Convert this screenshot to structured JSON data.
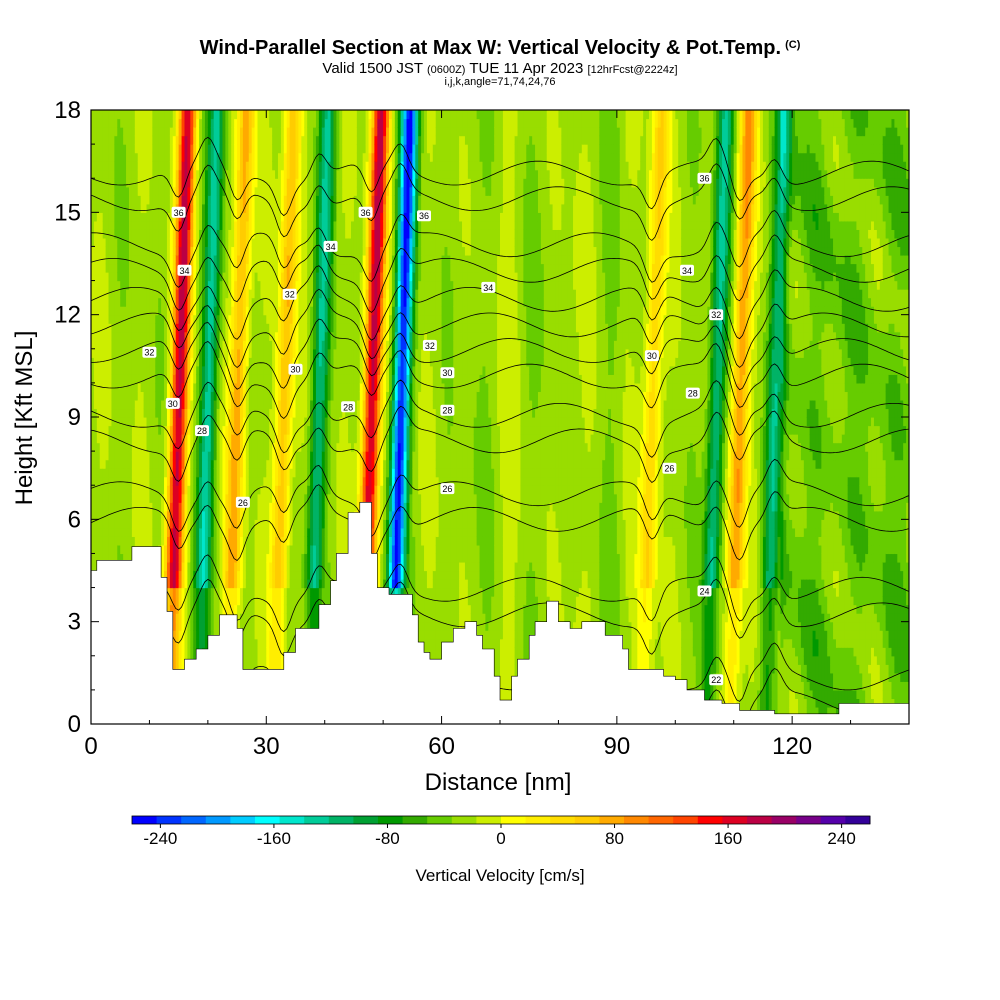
{
  "header": {
    "title": "Wind-Parallel Section at Max W: Vertical Velocity & Pot.Temp.",
    "copyright": "(C)",
    "subtitle_main": "Valid 1500 JST",
    "subtitle_utc": "(0600Z)",
    "subtitle_date": "TUE 11 Apr 2023",
    "subtitle_fcst": "[12hrFcst@2224z]",
    "indices": "i,j,k,angle=71,74,24,76"
  },
  "chart_data": {
    "type": "heatmap",
    "xlabel": "Distance [nm]",
    "ylabel": "Height [Kft MSL]",
    "xlim": [
      0,
      140
    ],
    "ylim": [
      0,
      18
    ],
    "xticks": [
      0,
      30,
      60,
      90,
      120
    ],
    "yticks": [
      0,
      3,
      6,
      9,
      12,
      15,
      18
    ],
    "colorbar": {
      "label": "Vertical Velocity [cm/s]",
      "range": [
        -260,
        260
      ],
      "step": 20,
      "ticks": [
        -240,
        -160,
        -80,
        0,
        80,
        160,
        240
      ],
      "colors": [
        "#0000ff",
        "#0033ff",
        "#0066ff",
        "#0099ff",
        "#00ccff",
        "#00ffff",
        "#00e6cc",
        "#00cc99",
        "#00b366",
        "#00a033",
        "#009900",
        "#33aa00",
        "#66cc00",
        "#99dd00",
        "#ccee00",
        "#ffff00",
        "#ffee00",
        "#ffdd00",
        "#ffcc00",
        "#ffaa00",
        "#ff8800",
        "#ff6600",
        "#ff4400",
        "#ff0000",
        "#dd0022",
        "#bb0044",
        "#990066",
        "#770088",
        "#5500aa",
        "#330099"
      ]
    },
    "updrafts": [
      {
        "x": 15,
        "w": 230
      },
      {
        "x": 25,
        "w": 120
      },
      {
        "x": 33,
        "w": 110
      },
      {
        "x": 48,
        "w": 240
      },
      {
        "x": 96,
        "w": 90
      },
      {
        "x": 111,
        "w": 130
      }
    ],
    "downdrafts": [
      {
        "x": 20,
        "w": -120
      },
      {
        "x": 39,
        "w": -110
      },
      {
        "x": 53,
        "w": -250
      },
      {
        "x": 107,
        "w": -120
      },
      {
        "x": 117,
        "w": -100
      }
    ],
    "isentropes": [
      {
        "theta": 22,
        "base": 0.6
      },
      {
        "theta": 24,
        "base": 3.2
      },
      {
        "theta": 26,
        "base": 6.0
      },
      {
        "theta": 28,
        "base": 8.3
      },
      {
        "theta": 30,
        "base": 10.2
      },
      {
        "theta": 32,
        "base": 11.7
      },
      {
        "theta": 34,
        "base": 13.3
      },
      {
        "theta": 36,
        "base": 15.4
      }
    ],
    "contour_labels": [
      {
        "text": "36",
        "x": 15,
        "y": 15.0
      },
      {
        "text": "34",
        "x": 16,
        "y": 13.3
      },
      {
        "text": "32",
        "x": 10,
        "y": 10.9
      },
      {
        "text": "30",
        "x": 14,
        "y": 9.4
      },
      {
        "text": "28",
        "x": 19,
        "y": 8.6
      },
      {
        "text": "26",
        "x": 26,
        "y": 6.5
      },
      {
        "text": "32",
        "x": 34,
        "y": 12.6
      },
      {
        "text": "30",
        "x": 35,
        "y": 10.4
      },
      {
        "text": "34",
        "x": 41,
        "y": 14.0
      },
      {
        "text": "36",
        "x": 47,
        "y": 15.0
      },
      {
        "text": "28",
        "x": 44,
        "y": 9.3
      },
      {
        "text": "36",
        "x": 57,
        "y": 14.9
      },
      {
        "text": "32",
        "x": 58,
        "y": 11.1
      },
      {
        "text": "30",
        "x": 61,
        "y": 10.3
      },
      {
        "text": "28",
        "x": 61,
        "y": 9.2
      },
      {
        "text": "26",
        "x": 61,
        "y": 6.9
      },
      {
        "text": "34",
        "x": 68,
        "y": 12.8
      },
      {
        "text": "30",
        "x": 96,
        "y": 10.8
      },
      {
        "text": "28",
        "x": 103,
        "y": 9.7
      },
      {
        "text": "26",
        "x": 99,
        "y": 7.5
      },
      {
        "text": "24",
        "x": 105,
        "y": 3.9
      },
      {
        "text": "22",
        "x": 107,
        "y": 1.3
      },
      {
        "text": "36",
        "x": 105,
        "y": 16.0
      },
      {
        "text": "34",
        "x": 102,
        "y": 13.3
      },
      {
        "text": "32",
        "x": 107,
        "y": 12.0
      }
    ],
    "terrain_kft": [
      [
        0,
        4.5
      ],
      [
        1,
        4.5
      ],
      [
        1,
        4.8
      ],
      [
        7,
        4.8
      ],
      [
        7,
        5.2
      ],
      [
        12,
        5.2
      ],
      [
        12,
        4.3
      ],
      [
        13,
        4.3
      ],
      [
        13,
        3.3
      ],
      [
        14,
        3.3
      ],
      [
        14,
        1.6
      ],
      [
        16,
        1.6
      ],
      [
        16,
        1.9
      ],
      [
        18,
        1.9
      ],
      [
        18,
        2.2
      ],
      [
        20,
        2.2
      ],
      [
        20,
        2.6
      ],
      [
        22,
        2.6
      ],
      [
        22,
        3.2
      ],
      [
        25,
        3.2
      ],
      [
        25,
        2.8
      ],
      [
        26,
        2.8
      ],
      [
        26,
        1.6
      ],
      [
        33,
        1.6
      ],
      [
        33,
        2.1
      ],
      [
        35,
        2.1
      ],
      [
        35,
        2.8
      ],
      [
        39,
        2.8
      ],
      [
        39,
        3.5
      ],
      [
        41,
        3.5
      ],
      [
        41,
        4.2
      ],
      [
        42,
        4.2
      ],
      [
        42,
        5.0
      ],
      [
        44,
        5.0
      ],
      [
        44,
        6.2
      ],
      [
        46,
        6.2
      ],
      [
        46,
        6.5
      ],
      [
        48,
        6.5
      ],
      [
        48,
        5.0
      ],
      [
        49,
        5.0
      ],
      [
        49,
        4.0
      ],
      [
        51,
        4.0
      ],
      [
        51,
        3.8
      ],
      [
        52,
        3.8
      ],
      [
        52,
        3.8
      ],
      [
        55,
        3.8
      ],
      [
        55,
        3.2
      ],
      [
        56,
        3.2
      ],
      [
        56,
        2.4
      ],
      [
        57,
        2.4
      ],
      [
        57,
        2.1
      ],
      [
        58,
        2.1
      ],
      [
        58,
        1.9
      ],
      [
        60,
        1.9
      ],
      [
        60,
        2.4
      ],
      [
        62,
        2.4
      ],
      [
        62,
        2.8
      ],
      [
        64,
        2.8
      ],
      [
        64,
        3.0
      ],
      [
        66,
        3.0
      ],
      [
        66,
        2.6
      ],
      [
        67,
        2.6
      ],
      [
        67,
        2.2
      ],
      [
        69,
        2.2
      ],
      [
        69,
        1.4
      ],
      [
        70,
        1.4
      ],
      [
        70,
        0.7
      ],
      [
        72,
        0.7
      ],
      [
        72,
        1.4
      ],
      [
        73,
        1.4
      ],
      [
        73,
        1.9
      ],
      [
        75,
        1.9
      ],
      [
        75,
        2.6
      ],
      [
        76,
        2.6
      ],
      [
        76,
        3.0
      ],
      [
        78,
        3.0
      ],
      [
        78,
        3.6
      ],
      [
        80,
        3.6
      ],
      [
        80,
        3.0
      ],
      [
        82,
        3.0
      ],
      [
        82,
        2.8
      ],
      [
        84,
        2.8
      ],
      [
        84,
        3.0
      ],
      [
        86,
        3.0
      ],
      [
        86,
        3.0
      ],
      [
        88,
        3.0
      ],
      [
        88,
        2.6
      ],
      [
        91,
        2.6
      ],
      [
        91,
        2.2
      ],
      [
        92,
        2.2
      ],
      [
        92,
        1.6
      ],
      [
        98,
        1.6
      ],
      [
        98,
        1.4
      ],
      [
        100,
        1.4
      ],
      [
        100,
        1.3
      ],
      [
        102,
        1.3
      ],
      [
        102,
        1.0
      ],
      [
        105,
        1.0
      ],
      [
        105,
        0.7
      ],
      [
        108,
        0.7
      ],
      [
        108,
        0.6
      ],
      [
        111,
        0.6
      ],
      [
        111,
        0.4
      ],
      [
        117,
        0.4
      ],
      [
        117,
        0.3
      ],
      [
        128,
        0.3
      ],
      [
        128,
        0.6
      ],
      [
        140,
        0.6
      ]
    ]
  }
}
